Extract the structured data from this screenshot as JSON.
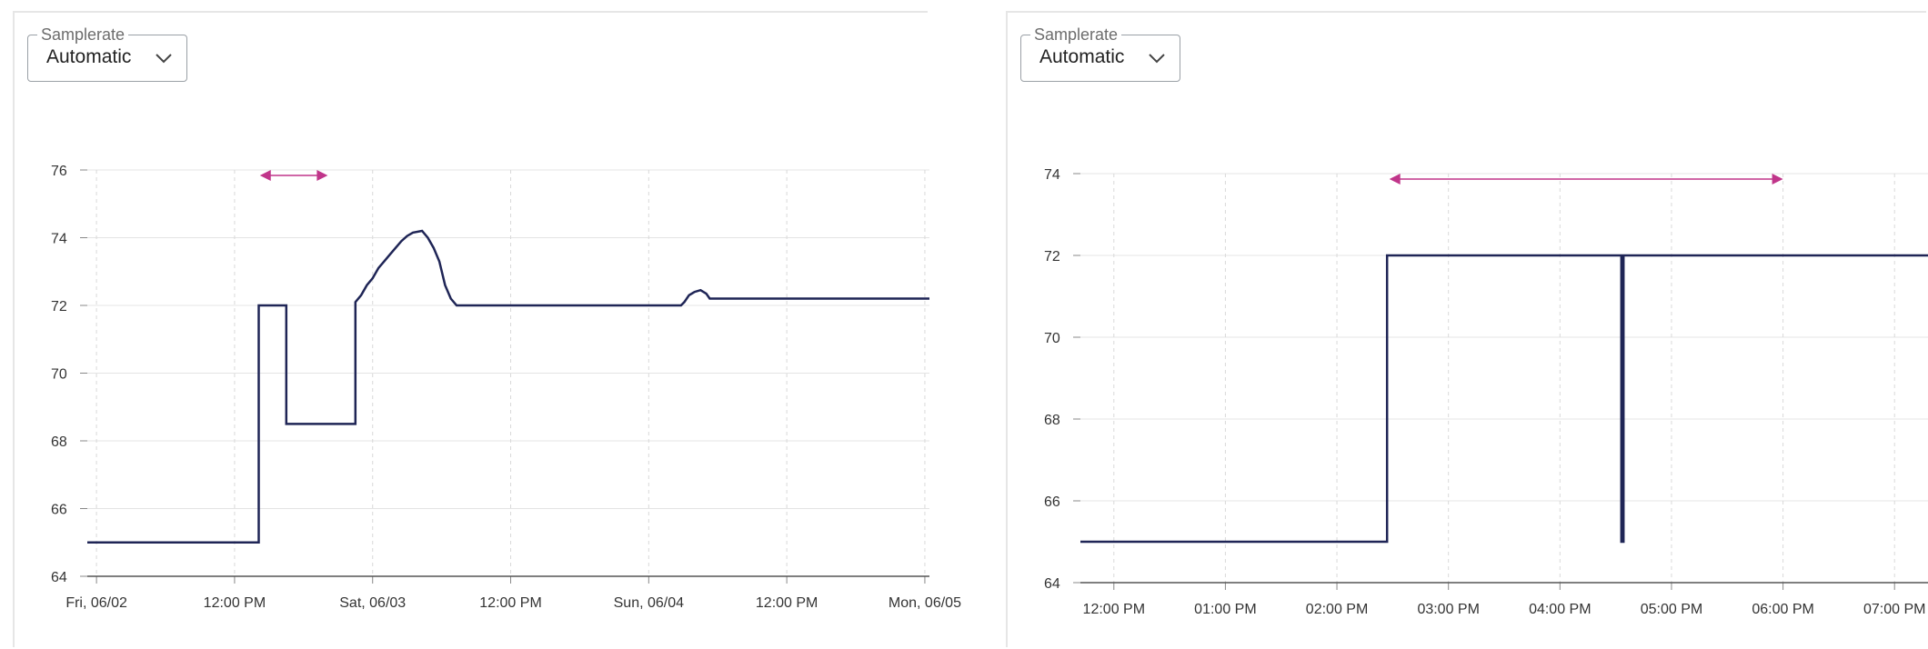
{
  "panels": [
    {
      "samplerate": {
        "legend": "Samplerate",
        "value": "Automatic"
      },
      "chart_data": {
        "type": "line",
        "step": true,
        "x_unit": "hours since Fri, 06/02 00:00",
        "xlim": [
          -0.8,
          72.4
        ],
        "ylim": [
          64,
          76
        ],
        "yticks": [
          64,
          66,
          68,
          70,
          72,
          74,
          76
        ],
        "xticks": [
          {
            "x": 0,
            "label": "Fri, 06/02"
          },
          {
            "x": 12,
            "label": "12:00 PM"
          },
          {
            "x": 24,
            "label": "Sat, 06/03"
          },
          {
            "x": 36,
            "label": "12:00 PM"
          },
          {
            "x": 48,
            "label": "Sun, 06/04"
          },
          {
            "x": 60,
            "label": "12:00 PM"
          },
          {
            "x": 72,
            "label": "Mon, 06/05"
          }
        ],
        "grid": true,
        "legend": "none",
        "range_marker": {
          "x_start": 14.2,
          "x_end": 20.1,
          "color": "#c0358a"
        },
        "series": [
          {
            "color": "#1f2556",
            "points": [
              [
                -0.8,
                65
              ],
              [
                14.1,
                65
              ],
              [
                14.1,
                72
              ],
              [
                16.5,
                72
              ],
              [
                16.5,
                68.5
              ],
              [
                22.5,
                68.5
              ],
              [
                22.5,
                72.1
              ],
              [
                23.0,
                72.3
              ],
              [
                23.5,
                72.6
              ],
              [
                24.0,
                72.8
              ],
              [
                24.5,
                73.1
              ],
              [
                25.0,
                73.3
              ],
              [
                25.5,
                73.5
              ],
              [
                26.0,
                73.7
              ],
              [
                26.5,
                73.9
              ],
              [
                27.0,
                74.05
              ],
              [
                27.5,
                74.15
              ],
              [
                28.3,
                74.2
              ],
              [
                28.8,
                74.0
              ],
              [
                29.3,
                73.7
              ],
              [
                29.8,
                73.3
              ],
              [
                30.3,
                72.6
              ],
              [
                30.8,
                72.2
              ],
              [
                31.3,
                72.0
              ],
              [
                50.8,
                72.0
              ],
              [
                51.1,
                72.1
              ],
              [
                51.5,
                72.3
              ],
              [
                52.0,
                72.4
              ],
              [
                52.5,
                72.45
              ],
              [
                53.0,
                72.35
              ],
              [
                53.3,
                72.2
              ],
              [
                72.4,
                72.2
              ]
            ]
          }
        ]
      }
    },
    {
      "samplerate": {
        "legend": "Samplerate",
        "value": "Automatic"
      },
      "chart_data": {
        "type": "line",
        "step": true,
        "x_unit": "hours since 00:00",
        "xlim": [
          11.7,
          19.3
        ],
        "ylim": [
          64,
          74
        ],
        "yticks": [
          64,
          66,
          68,
          70,
          72,
          74
        ],
        "xticks": [
          {
            "x": 12,
            "label": "12:00 PM"
          },
          {
            "x": 13,
            "label": "01:00 PM"
          },
          {
            "x": 14,
            "label": "02:00 PM"
          },
          {
            "x": 15,
            "label": "03:00 PM"
          },
          {
            "x": 16,
            "label": "04:00 PM"
          },
          {
            "x": 17,
            "label": "05:00 PM"
          },
          {
            "x": 18,
            "label": "06:00 PM"
          },
          {
            "x": 19,
            "label": "07:00 PM"
          }
        ],
        "grid": true,
        "legend": "none",
        "range_marker": {
          "x_start": 14.47,
          "x_end": 18.0,
          "color": "#c0358a"
        },
        "series": [
          {
            "color": "#1f2556",
            "points": [
              [
                11.7,
                65
              ],
              [
                14.45,
                65
              ],
              [
                14.45,
                72
              ],
              [
                16.55,
                72
              ],
              [
                16.55,
                65
              ],
              [
                16.57,
                65
              ],
              [
                16.57,
                72
              ],
              [
                19.3,
                72
              ]
            ]
          }
        ]
      }
    }
  ]
}
